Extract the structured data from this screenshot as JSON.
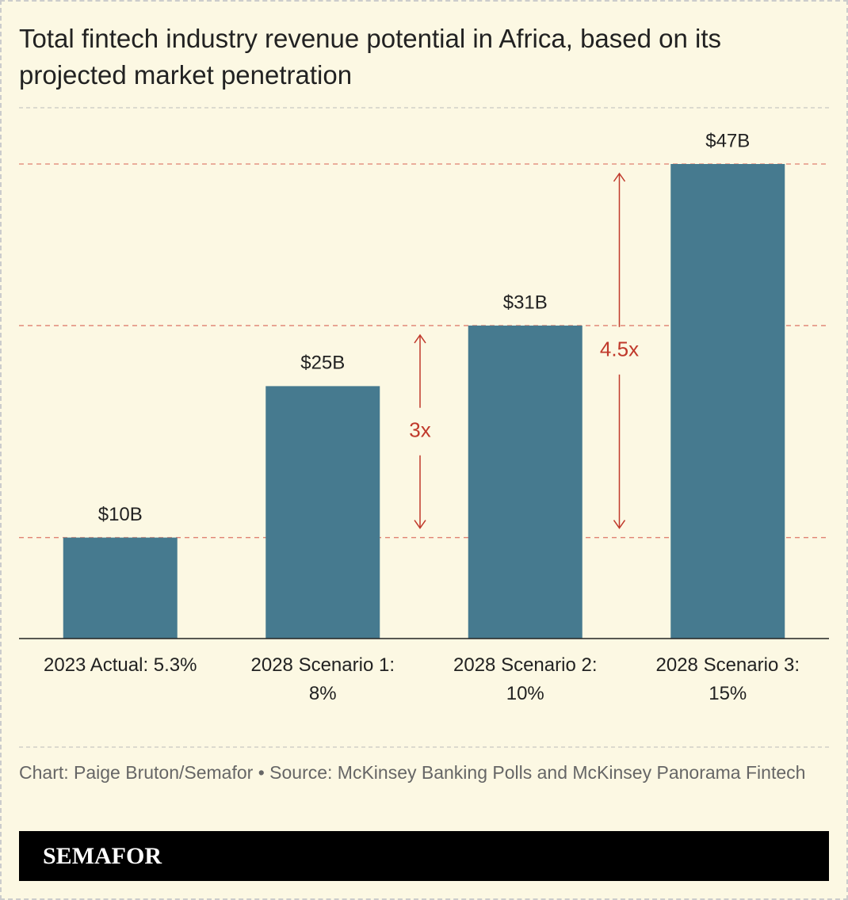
{
  "chart_data": {
    "type": "bar",
    "title": "Total fintech industry revenue potential in Africa, based on its projected market penetration",
    "categories": [
      "2023 Actual: 5.3%",
      "2028 Scenario 1: 8%",
      "2028 Scenario 2: 10%",
      "2028 Scenario 3: 15%"
    ],
    "values": [
      10,
      25,
      31,
      47
    ],
    "value_labels": [
      "$10B",
      "$25B",
      "$31B",
      "$47B"
    ],
    "color": "#467a8f",
    "annotations": [
      "3x",
      "4.5x"
    ],
    "source": "Chart: Paige Bruton/Semafor • Source: McKinsey Banking Polls and McKinsey Panorama Fintech",
    "brand": "SEMAFOR"
  }
}
